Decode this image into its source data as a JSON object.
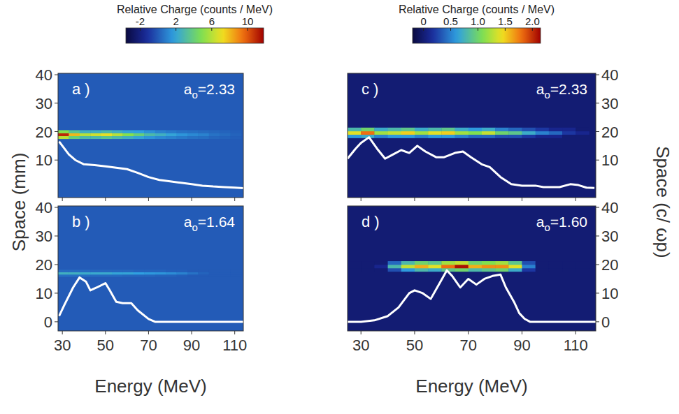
{
  "chart_data": [
    {
      "type": "heatmap",
      "label": "a )",
      "annotation": "ao=2.33",
      "ylabel": "Space (mm)",
      "xlim": [
        28,
        114
      ],
      "xticks": [
        30,
        50,
        70,
        90,
        110
      ],
      "ylim": [
        -3.2,
        40.5
      ],
      "yticks": [
        10,
        20,
        30,
        40
      ],
      "tick_labels": "y",
      "colorbar": {
        "title": "Relative Charge (counts / MeV)",
        "lim": [
          -3.6,
          11.8
        ],
        "ticks": [
          -2,
          2,
          6,
          10
        ]
      },
      "background": 0,
      "heatmap": {
        "x": [
          28,
          33,
          38,
          43,
          48,
          53,
          58,
          63,
          68,
          73,
          78,
          83,
          88,
          93,
          98,
          103,
          108,
          113
        ],
        "y": [
          17.5,
          18.5,
          19.5,
          20.5
        ],
        "z": [
          [
            6,
            4,
            3,
            3,
            3.5,
            3,
            2.5,
            2,
            1.5,
            1.2,
            1,
            0.8,
            0.6,
            0.5,
            0.3,
            0.2,
            0.1
          ],
          [
            11,
            8,
            6,
            6.5,
            7,
            6,
            5,
            4,
            3,
            2.5,
            2,
            1.5,
            1.2,
            1,
            0.6,
            0.4,
            0.2
          ],
          [
            5,
            3.5,
            2.5,
            2.5,
            3,
            2.5,
            2,
            1.8,
            1.4,
            1,
            0.8,
            0.6,
            0.5,
            0.4,
            0.3,
            0.2,
            0.1
          ]
        ]
      },
      "x": [
        28.5,
        30,
        33,
        36,
        40,
        45,
        50,
        55,
        60,
        65,
        70,
        75,
        80,
        85,
        90,
        95,
        100,
        105,
        110,
        114
      ],
      "series": [
        {
          "type": "line",
          "color": "#ffffff",
          "values": [
            16.5,
            15,
            12,
            10,
            8.5,
            8.2,
            7.8,
            7.3,
            6.8,
            5.5,
            4,
            3,
            2.5,
            2,
            1.5,
            1,
            0.7,
            0.5,
            0.3,
            0.1
          ]
        }
      ]
    },
    {
      "type": "heatmap",
      "label": "b )",
      "annotation": "ao=1.64",
      "xlabel": "Energy (MeV)",
      "xlim": [
        28,
        114
      ],
      "xticks": [
        30,
        50,
        70,
        90,
        110
      ],
      "ylim": [
        -3.2,
        40.5
      ],
      "yticks": [
        0,
        10,
        20,
        30,
        40
      ],
      "tick_labels": true,
      "background": 0,
      "heatmap": {
        "x": [
          28,
          33,
          38,
          43,
          48,
          53,
          58,
          63,
          68,
          73,
          78,
          83,
          88,
          93,
          98,
          103,
          108,
          113
        ],
        "y": [
          15.8,
          16.6,
          17.4,
          18.2
        ],
        "z": [
          [
            0.5,
            0.5,
            0.5,
            0.4,
            0.4,
            0.4,
            0.3,
            0.3,
            0.3,
            0.2,
            0.2,
            0.1,
            0,
            0,
            0,
            0,
            0
          ],
          [
            2.5,
            2.5,
            2.3,
            2.2,
            2.2,
            2,
            2,
            1.8,
            1.6,
            1.5,
            1.3,
            1,
            0.6,
            0.2,
            0,
            0,
            0
          ],
          [
            0.4,
            0.4,
            0.4,
            0.3,
            0.3,
            0.3,
            0.3,
            0.2,
            0.2,
            0.2,
            0.1,
            0.1,
            0,
            0,
            0,
            0,
            0
          ]
        ]
      },
      "x": [
        28.5,
        31,
        35,
        38,
        41,
        43,
        46,
        50,
        52,
        55,
        58,
        62,
        65,
        70,
        73,
        114
      ],
      "series": [
        {
          "type": "line",
          "color": "#ffffff",
          "values": [
            2,
            6,
            12,
            15.5,
            14,
            11,
            12,
            13.5,
            11,
            7,
            6.5,
            6.5,
            4,
            1,
            0,
            0
          ]
        }
      ]
    },
    {
      "type": "heatmap",
      "label": "c )",
      "annotation": "ao=2.33",
      "ylabel": "Space (c/ ωp)",
      "xlim": [
        25,
        117.5
      ],
      "xticks": [
        30,
        50,
        70,
        90,
        110
      ],
      "ylim": [
        -3.2,
        40.5
      ],
      "yticks": [
        10,
        20,
        30,
        40
      ],
      "tick_labels": "y",
      "colorbar": {
        "title": "Relative Charge (counts / MeV)",
        "lim": [
          -0.2,
          2.15
        ],
        "ticks": [
          0,
          0.5,
          {
            "value": 1,
            "label": "1.0"
          },
          1.5,
          {
            "value": 2,
            "label": "2.0"
          }
        ]
      },
      "background": 0,
      "heatmap": {
        "x": [
          25,
          30,
          35,
          40,
          45,
          50,
          55,
          60,
          65,
          70,
          75,
          80,
          85,
          90,
          95,
          100,
          105,
          110,
          115
        ],
        "y": [
          17.8,
          19,
          20.2,
          21.4
        ],
        "z": [
          [
            0.6,
            0.7,
            0.5,
            0.6,
            0.6,
            0.5,
            0.6,
            0.6,
            0.5,
            0.4,
            0.4,
            0.3,
            0.3,
            0.2,
            0.1,
            0.1,
            0,
            0
          ],
          [
            1.4,
            1.8,
            1.2,
            1.3,
            1.5,
            1.2,
            1.4,
            1.5,
            1.2,
            1.1,
            1.3,
            1.0,
            0.9,
            0.7,
            0.5,
            0.4,
            0.2,
            0.1
          ],
          [
            0.8,
            1.0,
            0.7,
            0.8,
            0.9,
            0.7,
            0.8,
            0.9,
            0.7,
            0.6,
            0.7,
            0.5,
            0.4,
            0.3,
            0.2,
            0.1,
            0.1,
            0
          ]
        ]
      },
      "x": [
        25,
        28,
        30,
        33,
        36,
        39,
        42,
        45,
        48,
        51,
        54,
        58,
        61,
        65,
        68,
        71,
        75,
        78,
        82,
        86,
        90,
        95,
        98,
        104,
        108,
        111,
        114,
        117
      ],
      "series": [
        {
          "type": "line",
          "color": "#ffffff",
          "values": [
            10.5,
            14,
            16,
            18,
            14,
            10.5,
            12,
            13.5,
            12.5,
            15,
            13,
            11,
            11,
            12.5,
            13,
            11,
            8.5,
            7.5,
            4,
            1.5,
            1,
            1,
            0.5,
            0.5,
            1.5,
            1.2,
            0.3,
            0.2
          ]
        }
      ]
    },
    {
      "type": "heatmap",
      "label": "d )",
      "annotation": "ao=1.60",
      "xlabel": "Energy (MeV)",
      "xlim": [
        25,
        117.5
      ],
      "xticks": [
        30,
        50,
        70,
        90,
        110
      ],
      "ylim": [
        -3.2,
        40.5
      ],
      "yticks": [
        0,
        10,
        20,
        30,
        40
      ],
      "tick_labels": true,
      "background": 0,
      "heatmap": {
        "x": [
          25,
          30,
          35,
          40,
          45,
          50,
          55,
          60,
          65,
          70,
          75,
          80,
          85,
          90,
          95,
          100,
          105,
          110,
          115
        ],
        "y": [
          17.6,
          18.8,
          20,
          21.2
        ],
        "z": [
          [
            0,
            0,
            0,
            0.3,
            0.6,
            0.8,
            0.7,
            0.9,
            1.0,
            0.8,
            0.9,
            1.0,
            0.7,
            0.2,
            0,
            0,
            0,
            0
          ],
          [
            0,
            0,
            0.1,
            0.8,
            1.3,
            1.6,
            1.4,
            1.8,
            2.1,
            1.6,
            1.7,
            1.7,
            1.4,
            0.5,
            0,
            0,
            0,
            0
          ],
          [
            0,
            0,
            0,
            0.4,
            0.8,
            1.0,
            0.9,
            1.2,
            1.3,
            1.0,
            1.1,
            1.2,
            0.9,
            0.3,
            0,
            0,
            0,
            0
          ]
        ]
      },
      "x": [
        25,
        30,
        35,
        40,
        44,
        48,
        50,
        53,
        56,
        59,
        62,
        64,
        67,
        70,
        73,
        76,
        79,
        82,
        84,
        87,
        89,
        91,
        93,
        117.5
      ],
      "series": [
        {
          "type": "line",
          "color": "#ffffff",
          "values": [
            0,
            0,
            0.5,
            2,
            5,
            10,
            11,
            10,
            8,
            13,
            18,
            16,
            12,
            15,
            13,
            15,
            16,
            16.5,
            12,
            7,
            3,
            1,
            0,
            0
          ]
        }
      ]
    }
  ]
}
